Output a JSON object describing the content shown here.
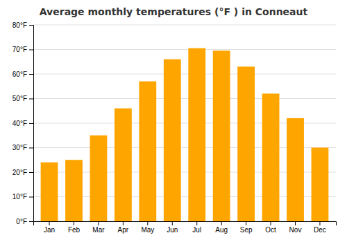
{
  "chart_data": {
    "type": "bar",
    "title": "Average monthly temperatures (°F ) in Conneaut",
    "categories": [
      "Jan",
      "Feb",
      "Mar",
      "Apr",
      "May",
      "Jun",
      "Jul",
      "Aug",
      "Sep",
      "Oct",
      "Nov",
      "Dec"
    ],
    "values": [
      24,
      25,
      35,
      46,
      57,
      66,
      70.5,
      69.5,
      63,
      52,
      42,
      30
    ],
    "color": "#FFA500",
    "ylim": [
      0,
      80
    ],
    "yticks": [
      {
        "value": 0,
        "label": "0°F"
      },
      {
        "value": 10,
        "label": "10°F"
      },
      {
        "value": 20,
        "label": "20°F"
      },
      {
        "value": 30,
        "label": "30°F"
      },
      {
        "value": 40,
        "label": "40°F"
      },
      {
        "value": 50,
        "label": "50°F"
      },
      {
        "value": 60,
        "label": "60°F"
      },
      {
        "value": 70,
        "label": "70°F"
      },
      {
        "value": 80,
        "label": "80°F"
      }
    ],
    "grid": true
  }
}
